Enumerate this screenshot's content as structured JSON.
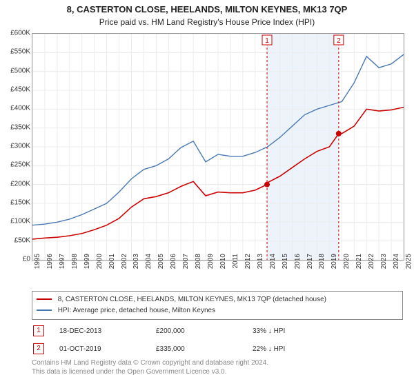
{
  "title": "8, CASTERTON CLOSE, HEELANDS, MILTON KEYNES, MK13 7QP",
  "subtitle": "Price paid vs. HM Land Registry's House Price Index (HPI)",
  "chart": {
    "type": "line",
    "background_color": "#ffffff",
    "grid_color": "#ececec",
    "border_color": "#999999",
    "xlim": [
      1995,
      2025
    ],
    "ylim": [
      0,
      600000
    ],
    "ytick_step": 50000,
    "yticks": [
      "£0",
      "£50K",
      "£100K",
      "£150K",
      "£200K",
      "£250K",
      "£300K",
      "£350K",
      "£400K",
      "£450K",
      "£500K",
      "£550K",
      "£600K"
    ],
    "xticks": [
      "1995",
      "1996",
      "1997",
      "1998",
      "1999",
      "2000",
      "2001",
      "2002",
      "2003",
      "2004",
      "2005",
      "2006",
      "2007",
      "2008",
      "2009",
      "2010",
      "2011",
      "2012",
      "2013",
      "2014",
      "2015",
      "2016",
      "2017",
      "2018",
      "2019",
      "2020",
      "2021",
      "2022",
      "2023",
      "2024",
      "2025"
    ],
    "label_fontsize": 10,
    "line_width_red": 1.6,
    "line_width_blue": 1.4,
    "shade_band_color": "#dfe9f5",
    "shade_band": [
      2013.96,
      2019.75
    ],
    "series": {
      "red": {
        "label": "8, CASTERTON CLOSE, HEELANDS, MILTON KEYNES, MK13 7QP (detached house)",
        "color": "#cc0000",
        "years": [
          1995,
          1996,
          1997,
          1998,
          1999,
          2000,
          2001,
          2002,
          2003,
          2004,
          2005,
          2006,
          2007,
          2008,
          2009,
          2010,
          2011,
          2012,
          2013,
          2013.96,
          2014,
          2015,
          2016,
          2017,
          2018,
          2019,
          2019.75,
          2020,
          2021,
          2022,
          2023,
          2024,
          2025
        ],
        "values": [
          55000,
          58000,
          60000,
          64000,
          70000,
          80000,
          92000,
          110000,
          140000,
          162000,
          168000,
          178000,
          195000,
          208000,
          170000,
          180000,
          178000,
          178000,
          185000,
          200000,
          205000,
          222000,
          245000,
          268000,
          288000,
          300000,
          335000,
          335000,
          355000,
          400000,
          395000,
          398000,
          405000
        ]
      },
      "blue": {
        "label": "HPI: Average price, detached house, Milton Keynes",
        "color": "#4a78b5",
        "years": [
          1995,
          1996,
          1997,
          1998,
          1999,
          2000,
          2001,
          2002,
          2003,
          2004,
          2005,
          2006,
          2007,
          2008,
          2009,
          2010,
          2011,
          2012,
          2013,
          2014,
          2015,
          2016,
          2017,
          2018,
          2019,
          2020,
          2021,
          2022,
          2023,
          2024,
          2025
        ],
        "values": [
          92000,
          95000,
          100000,
          108000,
          120000,
          135000,
          150000,
          180000,
          215000,
          240000,
          250000,
          268000,
          298000,
          315000,
          260000,
          280000,
          275000,
          275000,
          285000,
          300000,
          325000,
          355000,
          385000,
          400000,
          410000,
          420000,
          470000,
          540000,
          510000,
          520000,
          545000
        ]
      }
    },
    "sales": [
      {
        "n": "1",
        "year": 2013.96,
        "value": 200000,
        "date": "18-DEC-2013",
        "price": "£200,000",
        "diff": "33% ↓ HPI"
      },
      {
        "n": "2",
        "year": 2019.75,
        "value": 335000,
        "date": "01-OCT-2019",
        "price": "£335,000",
        "diff": "22% ↓ HPI"
      }
    ]
  },
  "attribution": {
    "line1": "Contains HM Land Registry data © Crown copyright and database right 2024.",
    "line2": "This data is licensed under the Open Government Licence v3.0."
  }
}
